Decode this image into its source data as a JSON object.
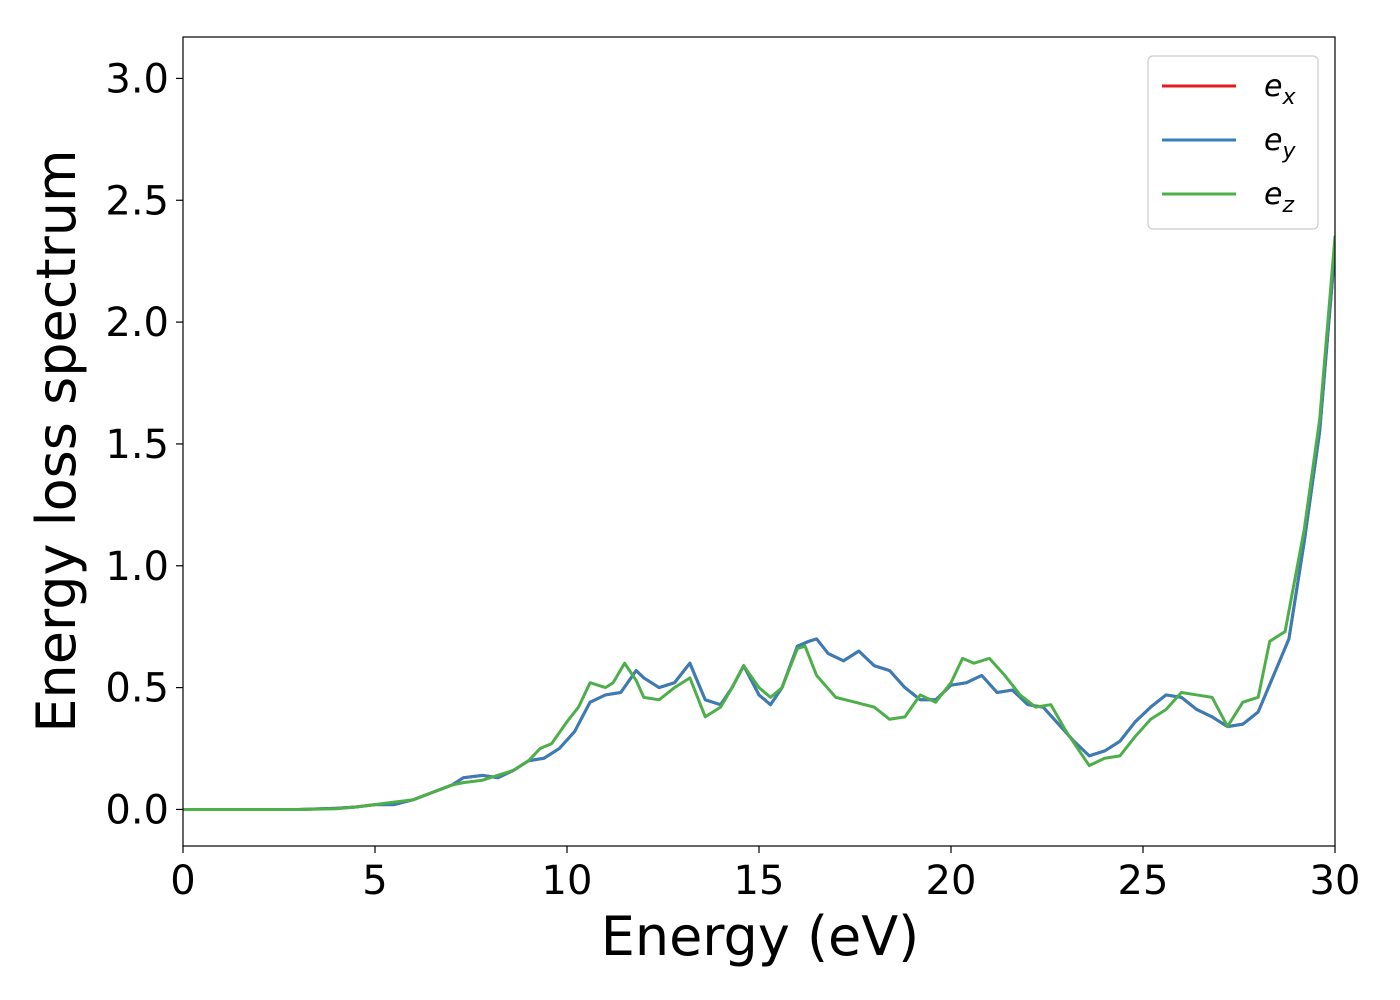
{
  "chart_data": {
    "type": "line",
    "xlabel": "Energy (eV)",
    "ylabel": "Energy loss spectrum",
    "xlim": [
      0,
      30
    ],
    "ylim": [
      -0.15,
      3.17
    ],
    "xticks": [
      "0",
      "5",
      "10",
      "15",
      "20",
      "25",
      "30"
    ],
    "yticks": [
      "0.0",
      "0.5",
      "1.0",
      "1.5",
      "2.0",
      "2.5",
      "3.0"
    ],
    "grid": false,
    "legend_position": "top-right",
    "series": [
      {
        "name": "e_x",
        "legend_base": "e",
        "legend_sub": "x",
        "color": "#e41a1c",
        "x": [
          0,
          2,
          3,
          4,
          4.5,
          5,
          5.5,
          6,
          6.5,
          7,
          7.3,
          7.8,
          8.2,
          8.6,
          9,
          9.4,
          9.8,
          10.2,
          10.6,
          11,
          11.4,
          11.8,
          12,
          12.4,
          12.8,
          13.2,
          13.6,
          14,
          14.3,
          14.6,
          15,
          15.3,
          15.6,
          16,
          16.3,
          16.5,
          16.8,
          17.2,
          17.6,
          18,
          18.4,
          18.8,
          19.2,
          19.6,
          20,
          20.4,
          20.8,
          21.2,
          21.6,
          22,
          22.4,
          22.8,
          23.2,
          23.6,
          24,
          24.4,
          24.8,
          25.2,
          25.6,
          26,
          26.4,
          26.8,
          27.2,
          27.6,
          28,
          28.4,
          28.8,
          29.2,
          29.6,
          30
        ],
        "y": [
          0,
          0,
          0,
          0.005,
          0.01,
          0.02,
          0.02,
          0.04,
          0.07,
          0.1,
          0.13,
          0.14,
          0.13,
          0.16,
          0.2,
          0.21,
          0.25,
          0.32,
          0.44,
          0.47,
          0.48,
          0.57,
          0.54,
          0.5,
          0.52,
          0.6,
          0.45,
          0.43,
          0.5,
          0.59,
          0.47,
          0.43,
          0.5,
          0.67,
          0.69,
          0.7,
          0.64,
          0.61,
          0.65,
          0.59,
          0.57,
          0.5,
          0.45,
          0.45,
          0.51,
          0.52,
          0.55,
          0.48,
          0.49,
          0.43,
          0.42,
          0.35,
          0.28,
          0.22,
          0.24,
          0.28,
          0.36,
          0.42,
          0.47,
          0.46,
          0.41,
          0.38,
          0.34,
          0.35,
          0.4,
          0.55,
          0.7,
          1.1,
          1.55,
          2.3
        ]
      },
      {
        "name": "e_y",
        "legend_base": "e",
        "legend_sub": "y",
        "color": "#377eb8",
        "x": [
          0,
          2,
          3,
          4,
          4.5,
          5,
          5.5,
          6,
          6.5,
          7,
          7.3,
          7.8,
          8.2,
          8.6,
          9,
          9.4,
          9.8,
          10.2,
          10.6,
          11,
          11.4,
          11.8,
          12,
          12.4,
          12.8,
          13.2,
          13.6,
          14,
          14.3,
          14.6,
          15,
          15.3,
          15.6,
          16,
          16.3,
          16.5,
          16.8,
          17.2,
          17.6,
          18,
          18.4,
          18.8,
          19.2,
          19.6,
          20,
          20.4,
          20.8,
          21.2,
          21.6,
          22,
          22.4,
          22.8,
          23.2,
          23.6,
          24,
          24.4,
          24.8,
          25.2,
          25.6,
          26,
          26.4,
          26.8,
          27.2,
          27.6,
          28,
          28.4,
          28.8,
          29.2,
          29.6,
          30
        ],
        "y": [
          0,
          0,
          0,
          0.005,
          0.01,
          0.02,
          0.02,
          0.04,
          0.07,
          0.1,
          0.13,
          0.14,
          0.13,
          0.16,
          0.2,
          0.21,
          0.25,
          0.32,
          0.44,
          0.47,
          0.48,
          0.57,
          0.54,
          0.5,
          0.52,
          0.6,
          0.45,
          0.43,
          0.5,
          0.59,
          0.47,
          0.43,
          0.5,
          0.67,
          0.69,
          0.7,
          0.64,
          0.61,
          0.65,
          0.59,
          0.57,
          0.5,
          0.45,
          0.45,
          0.51,
          0.52,
          0.55,
          0.48,
          0.49,
          0.43,
          0.42,
          0.35,
          0.28,
          0.22,
          0.24,
          0.28,
          0.36,
          0.42,
          0.47,
          0.46,
          0.41,
          0.38,
          0.34,
          0.35,
          0.4,
          0.55,
          0.7,
          1.1,
          1.55,
          2.3
        ]
      },
      {
        "name": "e_z",
        "legend_base": "e",
        "legend_sub": "z",
        "color": "#4daf4a",
        "x": [
          0,
          2,
          3,
          4,
          4.5,
          5,
          5.5,
          6,
          6.5,
          7,
          7.3,
          7.8,
          8.2,
          8.6,
          9,
          9.3,
          9.6,
          10,
          10.3,
          10.6,
          11,
          11.2,
          11.5,
          11.8,
          12,
          12.4,
          12.8,
          13.2,
          13.6,
          14,
          14.3,
          14.6,
          15,
          15.3,
          15.6,
          16,
          16.2,
          16.5,
          17,
          17.5,
          18,
          18.4,
          18.8,
          19.2,
          19.6,
          20,
          20.3,
          20.6,
          21,
          21.4,
          21.8,
          22.2,
          22.6,
          23,
          23.3,
          23.6,
          24,
          24.4,
          24.8,
          25.2,
          25.6,
          26,
          26.4,
          26.8,
          27.2,
          27.6,
          28,
          28.3,
          28.7,
          29.2,
          29.6,
          30
        ],
        "y": [
          0,
          0,
          0,
          0.003,
          0.01,
          0.02,
          0.03,
          0.04,
          0.07,
          0.1,
          0.11,
          0.12,
          0.14,
          0.16,
          0.2,
          0.25,
          0.27,
          0.36,
          0.42,
          0.52,
          0.5,
          0.52,
          0.6,
          0.53,
          0.46,
          0.45,
          0.5,
          0.54,
          0.38,
          0.42,
          0.5,
          0.59,
          0.5,
          0.46,
          0.5,
          0.66,
          0.67,
          0.55,
          0.46,
          0.44,
          0.42,
          0.37,
          0.38,
          0.47,
          0.44,
          0.52,
          0.62,
          0.6,
          0.62,
          0.55,
          0.47,
          0.42,
          0.43,
          0.32,
          0.25,
          0.18,
          0.21,
          0.22,
          0.3,
          0.37,
          0.41,
          0.48,
          0.47,
          0.46,
          0.34,
          0.44,
          0.46,
          0.69,
          0.73,
          1.15,
          1.6,
          2.35
        ]
      }
    ]
  }
}
